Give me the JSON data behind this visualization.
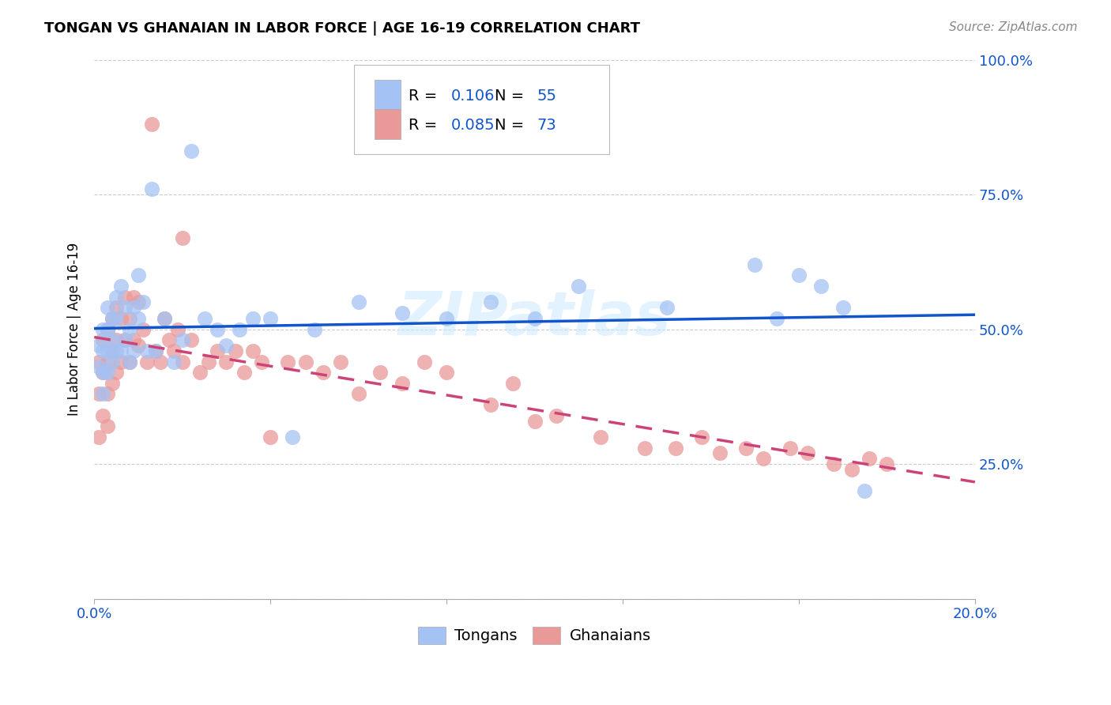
{
  "title": "TONGAN VS GHANAIAN IN LABOR FORCE | AGE 16-19 CORRELATION CHART",
  "source": "Source: ZipAtlas.com",
  "ylabel": "In Labor Force | Age 16-19",
  "xlim": [
    0.0,
    0.2
  ],
  "ylim": [
    0.0,
    1.0
  ],
  "tongan_R": 0.106,
  "tongan_N": 55,
  "ghanaian_R": 0.085,
  "ghanaian_N": 73,
  "blue_color": "#a4c2f4",
  "pink_color": "#ea9999",
  "blue_line_color": "#1155cc",
  "pink_line_color": "#cc4477",
  "tick_color": "#1155cc",
  "watermark": "ZIPatlas",
  "title_fontsize": 13,
  "source_fontsize": 11,
  "tick_fontsize": 13,
  "legend_fontsize": 14,
  "watermark_fontsize": 55,
  "tongan_x": [
    0.001,
    0.001,
    0.002,
    0.002,
    0.002,
    0.002,
    0.003,
    0.003,
    0.003,
    0.003,
    0.004,
    0.004,
    0.004,
    0.005,
    0.005,
    0.005,
    0.006,
    0.006,
    0.007,
    0.007,
    0.008,
    0.008,
    0.009,
    0.009,
    0.01,
    0.01,
    0.011,
    0.012,
    0.013,
    0.014,
    0.016,
    0.018,
    0.02,
    0.022,
    0.025,
    0.028,
    0.03,
    0.033,
    0.036,
    0.04,
    0.045,
    0.05,
    0.06,
    0.07,
    0.08,
    0.09,
    0.1,
    0.11,
    0.13,
    0.15,
    0.155,
    0.16,
    0.165,
    0.17,
    0.175
  ],
  "tongan_y": [
    0.47,
    0.43,
    0.5,
    0.46,
    0.42,
    0.38,
    0.54,
    0.5,
    0.46,
    0.42,
    0.52,
    0.48,
    0.44,
    0.56,
    0.52,
    0.46,
    0.58,
    0.46,
    0.54,
    0.48,
    0.5,
    0.44,
    0.54,
    0.46,
    0.6,
    0.52,
    0.55,
    0.46,
    0.76,
    0.46,
    0.52,
    0.44,
    0.48,
    0.83,
    0.52,
    0.5,
    0.47,
    0.5,
    0.52,
    0.52,
    0.3,
    0.5,
    0.55,
    0.53,
    0.52,
    0.55,
    0.52,
    0.58,
    0.54,
    0.62,
    0.52,
    0.6,
    0.58,
    0.54,
    0.2
  ],
  "ghanaian_x": [
    0.001,
    0.001,
    0.001,
    0.002,
    0.002,
    0.002,
    0.003,
    0.003,
    0.003,
    0.003,
    0.004,
    0.004,
    0.004,
    0.005,
    0.005,
    0.005,
    0.006,
    0.006,
    0.007,
    0.007,
    0.008,
    0.008,
    0.009,
    0.009,
    0.01,
    0.01,
    0.011,
    0.012,
    0.013,
    0.014,
    0.015,
    0.016,
    0.017,
    0.018,
    0.019,
    0.02,
    0.02,
    0.022,
    0.024,
    0.026,
    0.028,
    0.03,
    0.032,
    0.034,
    0.036,
    0.038,
    0.04,
    0.044,
    0.048,
    0.052,
    0.056,
    0.06,
    0.065,
    0.07,
    0.075,
    0.08,
    0.09,
    0.095,
    0.1,
    0.105,
    0.115,
    0.125,
    0.132,
    0.138,
    0.142,
    0.148,
    0.152,
    0.158,
    0.162,
    0.168,
    0.172,
    0.176,
    0.18
  ],
  "ghanaian_y": [
    0.44,
    0.38,
    0.3,
    0.48,
    0.42,
    0.34,
    0.5,
    0.44,
    0.38,
    0.32,
    0.52,
    0.46,
    0.4,
    0.54,
    0.48,
    0.42,
    0.52,
    0.44,
    0.56,
    0.48,
    0.52,
    0.44,
    0.56,
    0.48,
    0.55,
    0.47,
    0.5,
    0.44,
    0.88,
    0.46,
    0.44,
    0.52,
    0.48,
    0.46,
    0.5,
    0.44,
    0.67,
    0.48,
    0.42,
    0.44,
    0.46,
    0.44,
    0.46,
    0.42,
    0.46,
    0.44,
    0.3,
    0.44,
    0.44,
    0.42,
    0.44,
    0.38,
    0.42,
    0.4,
    0.44,
    0.42,
    0.36,
    0.4,
    0.33,
    0.34,
    0.3,
    0.28,
    0.28,
    0.3,
    0.27,
    0.28,
    0.26,
    0.28,
    0.27,
    0.25,
    0.24,
    0.26,
    0.25
  ]
}
